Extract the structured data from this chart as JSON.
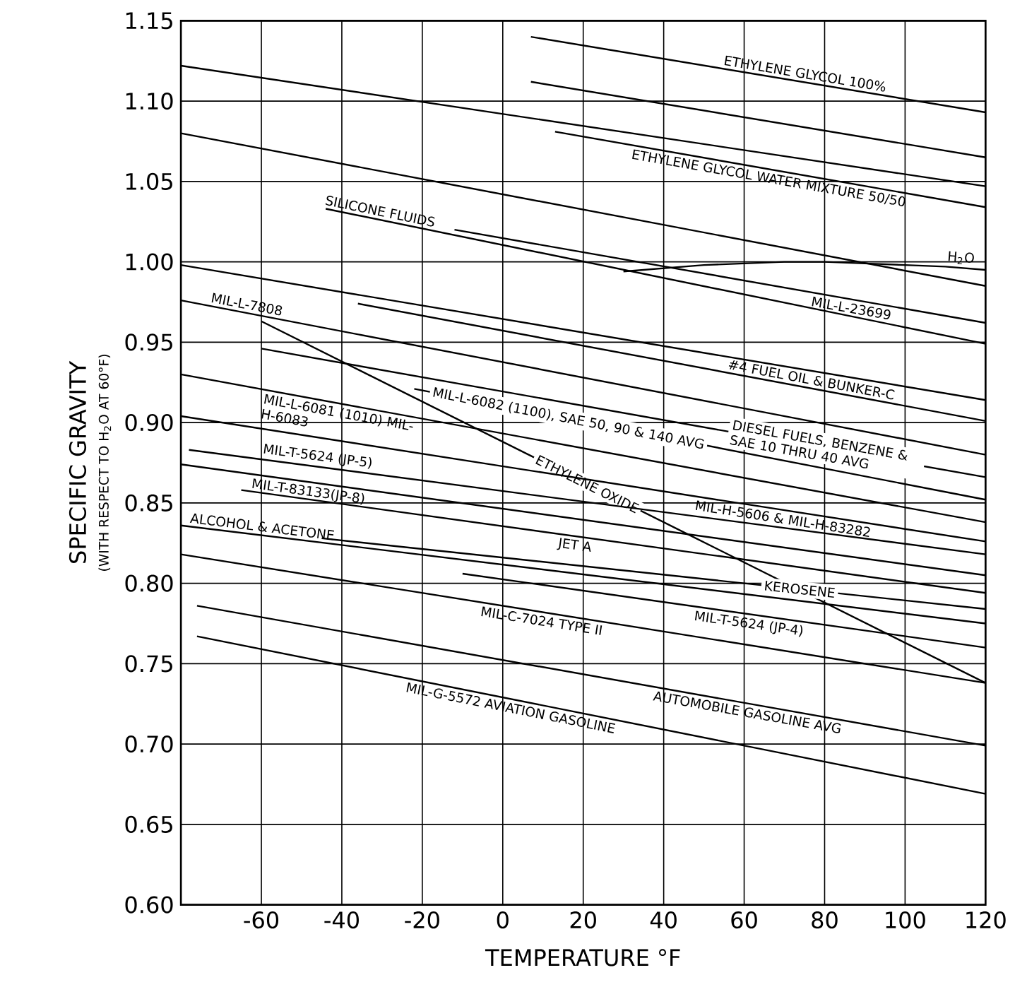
{
  "chart_data": {
    "type": "line",
    "xlabel": "TEMPERATURE °F",
    "ylabel": "SPECIFIC GRAVITY",
    "annotations": [
      "(WITH RESPECT TO H$_{2}$O AT 60°F)"
    ],
    "xlim": [
      -80,
      120
    ],
    "xticks": [
      -60,
      -40,
      -20,
      0,
      20,
      40,
      60,
      80,
      100,
      120
    ],
    "ylim": [
      0.6,
      1.15
    ],
    "yticks": [
      {
        "value": 0.6,
        "label": "0.60"
      },
      {
        "value": 0.65,
        "label": "0.65"
      },
      {
        "value": 0.7,
        "label": "0.70"
      },
      {
        "value": 0.75,
        "label": "0.75"
      },
      {
        "value": 0.8,
        "label": "0.80"
      },
      {
        "value": 0.85,
        "label": "0.85"
      },
      {
        "value": 0.9,
        "label": "0.90"
      },
      {
        "value": 0.95,
        "label": "0.95"
      },
      {
        "value": 1.0,
        "label": "1.00"
      },
      {
        "value": 1.05,
        "label": "1.05"
      },
      {
        "value": 1.1,
        "label": "1.10"
      },
      {
        "value": 1.15,
        "label": "1.15"
      }
    ],
    "grid": true,
    "marker": "none",
    "line_style": "solid",
    "series": [
      {
        "name": "ETHYLENE GLYCOL 100%",
        "color": "#000000",
        "x": [
          7,
          120
        ],
        "values": [
          1.14,
          1.093
        ]
      },
      {
        "color": "#000000",
        "x": [
          7,
          120
        ],
        "values": [
          1.112,
          1.065
        ]
      },
      {
        "color": "#000000",
        "x": [
          -80,
          120
        ],
        "values": [
          1.122,
          1.047
        ]
      },
      {
        "name": "ETHYLENE GLYCOL WATER MIXTURE 50/50",
        "color": "#000000",
        "x": [
          13,
          120
        ],
        "values": [
          1.081,
          1.034
        ]
      },
      {
        "color": "#000000",
        "x": [
          -80,
          120
        ],
        "values": [
          1.08,
          0.985
        ]
      },
      {
        "name": "H$_{2}$O",
        "color": "#000000",
        "x": [
          30,
          40,
          50,
          60,
          70,
          80,
          90,
          100,
          110,
          120
        ],
        "values": [
          0.994,
          0.996,
          0.998,
          0.999,
          1.0,
          1.0,
          0.999,
          0.998,
          0.997,
          0.995
        ]
      },
      {
        "name": "MIL-L-23699",
        "color": "#000000",
        "x": [
          -12,
          120
        ],
        "values": [
          1.02,
          0.962
        ]
      },
      {
        "name": "SILICONE FLUIDS",
        "color": "#000000",
        "x": [
          -44,
          120
        ],
        "values": [
          1.033,
          0.949
        ]
      },
      {
        "color": "#000000",
        "x": [
          -80,
          120
        ],
        "values": [
          0.998,
          0.914
        ]
      },
      {
        "name": "#4 FUEL OIL & BUNKER-C",
        "color": "#000000",
        "x": [
          -36,
          120
        ],
        "values": [
          0.974,
          0.901
        ]
      },
      {
        "name": "MIL-L-7808",
        "color": "#000000",
        "x": [
          -80,
          120
        ],
        "values": [
          0.976,
          0.88
        ]
      },
      {
        "name": "MIL-L-6081 (1010) MIL-H-6083",
        "color": "#000000",
        "x": [
          -80,
          120
        ],
        "values": [
          0.93,
          0.838
        ]
      },
      {
        "name": "MIL-L-6082 (1100), SAE 50, 90 & 140 AVG",
        "color": "#000000",
        "x": [
          -22,
          120
        ],
        "values": [
          0.921,
          0.852
        ]
      },
      {
        "name": "DIESEL FUELS, BENZENE & SAE 10 THRU 40 AVG",
        "color": "#000000",
        "x": [
          -60,
          120
        ],
        "values": [
          0.946,
          0.866
        ]
      },
      {
        "name": "ETHYLENE OXIDE",
        "color": "#000000",
        "x": [
          -60,
          120
        ],
        "values": [
          0.963,
          0.738
        ]
      },
      {
        "name": "MIL-H-5606 & MIL-H-83282",
        "color": "#000000",
        "x": [
          -80,
          120
        ],
        "values": [
          0.904,
          0.826
        ]
      },
      {
        "name": "MIL-T-5624 (JP-5)",
        "color": "#000000",
        "x": [
          -78,
          120
        ],
        "values": [
          0.883,
          0.818
        ]
      },
      {
        "name": "MIL-T-83133(JP-8)",
        "color": "#000000",
        "x": [
          -80,
          120
        ],
        "values": [
          0.874,
          0.805
        ]
      },
      {
        "name": "JET A",
        "color": "#000000",
        "x": [
          -65,
          120
        ],
        "values": [
          0.858,
          0.794
        ]
      },
      {
        "name": "KEROSENE",
        "color": "#000000",
        "x": [
          -45,
          120
        ],
        "values": [
          0.828,
          0.784
        ]
      },
      {
        "name": "ALCOHOL & ACETONE",
        "color": "#000000",
        "x": [
          -80,
          120
        ],
        "values": [
          0.836,
          0.775
        ]
      },
      {
        "name": "MIL-T-5624 (JP-4)",
        "color": "#000000",
        "x": [
          -10,
          120
        ],
        "values": [
          0.806,
          0.76
        ]
      },
      {
        "name": "MIL-C-7024 TYPE II",
        "color": "#000000",
        "x": [
          -80,
          120
        ],
        "values": [
          0.818,
          0.738
        ]
      },
      {
        "name": "AUTOMOBILE GASOLINE AVG",
        "color": "#000000",
        "x": [
          -76,
          120
        ],
        "values": [
          0.786,
          0.699
        ]
      },
      {
        "name": "MIL-G-5572 AVIATION GASOLINE",
        "color": "#000000",
        "x": [
          -76,
          120
        ],
        "values": [
          0.767,
          0.669
        ]
      }
    ]
  }
}
